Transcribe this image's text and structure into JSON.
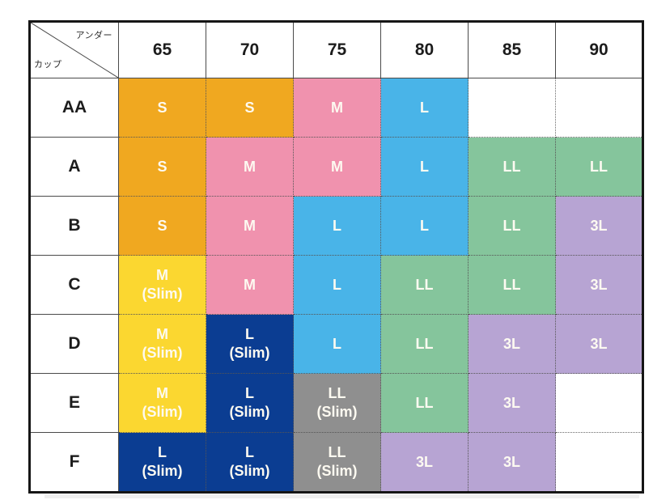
{
  "chart_data": {
    "type": "table",
    "title": "",
    "corner": {
      "top_label": "アンダー",
      "bottom_label": "カップ"
    },
    "columns": [
      "65",
      "70",
      "75",
      "80",
      "85",
      "90"
    ],
    "slim_label": "(Slim)",
    "rows": [
      {
        "cup": "AA",
        "cells": [
          {
            "size": "S",
            "slim": false,
            "color": "orange"
          },
          {
            "size": "S",
            "slim": false,
            "color": "orange"
          },
          {
            "size": "M",
            "slim": false,
            "color": "pink"
          },
          {
            "size": "L",
            "slim": false,
            "color": "blue"
          },
          null,
          null
        ]
      },
      {
        "cup": "A",
        "cells": [
          {
            "size": "S",
            "slim": false,
            "color": "orange"
          },
          {
            "size": "M",
            "slim": false,
            "color": "pink"
          },
          {
            "size": "M",
            "slim": false,
            "color": "pink"
          },
          {
            "size": "L",
            "slim": false,
            "color": "blue"
          },
          {
            "size": "LL",
            "slim": false,
            "color": "green"
          },
          {
            "size": "LL",
            "slim": false,
            "color": "green"
          }
        ]
      },
      {
        "cup": "B",
        "cells": [
          {
            "size": "S",
            "slim": false,
            "color": "orange"
          },
          {
            "size": "M",
            "slim": false,
            "color": "pink"
          },
          {
            "size": "L",
            "slim": false,
            "color": "blue"
          },
          {
            "size": "L",
            "slim": false,
            "color": "blue"
          },
          {
            "size": "LL",
            "slim": false,
            "color": "green"
          },
          {
            "size": "3L",
            "slim": false,
            "color": "purple"
          }
        ]
      },
      {
        "cup": "C",
        "cells": [
          {
            "size": "M",
            "slim": true,
            "color": "yellow"
          },
          {
            "size": "M",
            "slim": false,
            "color": "pink"
          },
          {
            "size": "L",
            "slim": false,
            "color": "blue"
          },
          {
            "size": "LL",
            "slim": false,
            "color": "green"
          },
          {
            "size": "LL",
            "slim": false,
            "color": "green"
          },
          {
            "size": "3L",
            "slim": false,
            "color": "purple"
          }
        ]
      },
      {
        "cup": "D",
        "cells": [
          {
            "size": "M",
            "slim": true,
            "color": "yellow"
          },
          {
            "size": "L",
            "slim": true,
            "color": "navy"
          },
          {
            "size": "L",
            "slim": false,
            "color": "blue"
          },
          {
            "size": "LL",
            "slim": false,
            "color": "green"
          },
          {
            "size": "3L",
            "slim": false,
            "color": "purple"
          },
          {
            "size": "3L",
            "slim": false,
            "color": "purple"
          }
        ]
      },
      {
        "cup": "E",
        "cells": [
          {
            "size": "M",
            "slim": true,
            "color": "yellow"
          },
          {
            "size": "L",
            "slim": true,
            "color": "navy"
          },
          {
            "size": "LL",
            "slim": true,
            "color": "gray"
          },
          {
            "size": "LL",
            "slim": false,
            "color": "green"
          },
          {
            "size": "3L",
            "slim": false,
            "color": "purple"
          },
          null
        ]
      },
      {
        "cup": "F",
        "cells": [
          {
            "size": "L",
            "slim": true,
            "color": "navy"
          },
          {
            "size": "L",
            "slim": true,
            "color": "navy"
          },
          {
            "size": "LL",
            "slim": true,
            "color": "gray"
          },
          {
            "size": "3L",
            "slim": false,
            "color": "purple"
          },
          {
            "size": "3L",
            "slim": false,
            "color": "purple"
          },
          null
        ]
      }
    ],
    "colors": {
      "orange": "#F0A820",
      "pink": "#F092AE",
      "blue": "#49B4E8",
      "green": "#85C59C",
      "purple": "#B7A4D3",
      "yellow": "#FBD730",
      "navy": "#0B3D92",
      "gray": "#8F8F8F"
    }
  }
}
